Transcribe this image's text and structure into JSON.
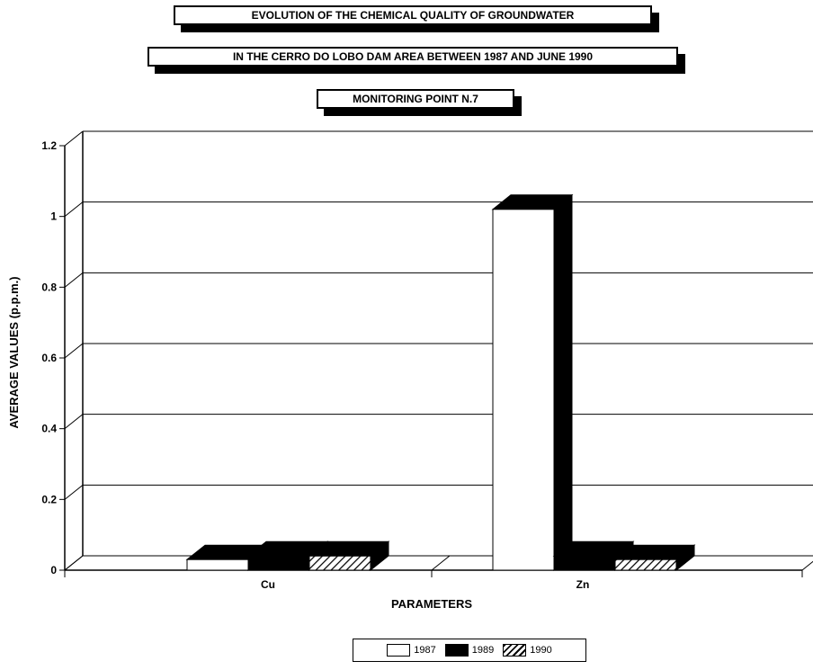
{
  "chart_data": {
    "type": "bar",
    "title_lines": [
      "EVOLUTION OF THE CHEMICAL QUALITY OF GROUNDWATER",
      "IN THE CERRO DO LOBO DAM AREA BETWEEN 1987 AND JUNE 1990",
      "MONITORING POINT N.7"
    ],
    "xlabel": "PARAMETERS",
    "ylabel": "AVERAGE VALUES (p.p.m.)",
    "categories": [
      "Cu",
      "Zn"
    ],
    "series": [
      {
        "name": "1987",
        "values": [
          0.03,
          1.02
        ]
      },
      {
        "name": "1989",
        "values": [
          0.04,
          0.04
        ]
      },
      {
        "name": "1990",
        "values": [
          0.04,
          0.03
        ]
      }
    ],
    "ylim": [
      0,
      1.2
    ],
    "yticks": [
      "0",
      "0.2",
      "0.4",
      "0.6",
      "0.8",
      "1",
      "1.2"
    ],
    "grid": true,
    "legend_position": "bottom-center",
    "colors": {
      "1987": "#ffffff",
      "1989": "#000000",
      "1990": "hatched"
    }
  }
}
